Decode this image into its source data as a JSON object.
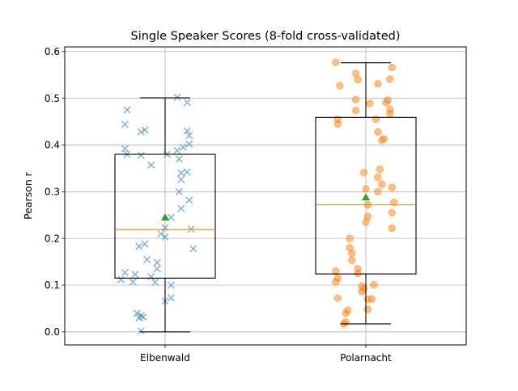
{
  "chart_data": {
    "type": "box",
    "title": "Single Speaker Scores (8-fold cross-validated)",
    "xlabel": "",
    "ylabel": "Pearson r",
    "ylim": [
      -0.028,
      0.61
    ],
    "yticks": [
      0.0,
      0.1,
      0.2,
      0.3,
      0.4,
      0.5,
      0.6
    ],
    "ytick_labels": [
      "0.0",
      "0.1",
      "0.2",
      "0.3",
      "0.4",
      "0.5",
      "0.6"
    ],
    "grid": true,
    "categories": [
      "Elbenwald",
      "Polarnacht"
    ],
    "series": [
      {
        "name": "Elbenwald",
        "color": "#1f77b4",
        "marker": "x",
        "box": {
          "whisker_low": 0.0,
          "q1": 0.115,
          "median": 0.219,
          "q3": 0.38,
          "whisker_high": 0.501,
          "mean": 0.245
        },
        "points": [
          {
            "x": -0.19,
            "y": 0.475
          },
          {
            "x": -0.2,
            "y": 0.444
          },
          {
            "x": -0.1,
            "y": 0.432
          },
          {
            "x": -0.12,
            "y": 0.428
          },
          {
            "x": 0.06,
            "y": 0.502
          },
          {
            "x": 0.11,
            "y": 0.491
          },
          {
            "x": 0.11,
            "y": 0.43
          },
          {
            "x": 0.12,
            "y": 0.42
          },
          {
            "x": 0.12,
            "y": 0.402
          },
          {
            "x": 0.09,
            "y": 0.395
          },
          {
            "x": -0.2,
            "y": 0.392
          },
          {
            "x": 0.06,
            "y": 0.388
          },
          {
            "x": -0.19,
            "y": 0.38
          },
          {
            "x": -0.12,
            "y": 0.378
          },
          {
            "x": 0.01,
            "y": 0.38
          },
          {
            "x": 0.07,
            "y": 0.37
          },
          {
            "x": -0.07,
            "y": 0.357
          },
          {
            "x": 0.11,
            "y": 0.342
          },
          {
            "x": 0.08,
            "y": 0.34
          },
          {
            "x": 0.08,
            "y": 0.326
          },
          {
            "x": 0.07,
            "y": 0.3
          },
          {
            "x": 0.12,
            "y": 0.282
          },
          {
            "x": 0.08,
            "y": 0.264
          },
          {
            "x": 0.03,
            "y": 0.245
          },
          {
            "x": 0.0,
            "y": 0.223
          },
          {
            "x": 0.13,
            "y": 0.22
          },
          {
            "x": -0.02,
            "y": 0.21
          },
          {
            "x": 0.0,
            "y": 0.203
          },
          {
            "x": -0.1,
            "y": 0.188
          },
          {
            "x": -0.13,
            "y": 0.183
          },
          {
            "x": 0.14,
            "y": 0.178
          },
          {
            "x": -0.09,
            "y": 0.155
          },
          {
            "x": -0.04,
            "y": 0.148
          },
          {
            "x": -0.04,
            "y": 0.135
          },
          {
            "x": -0.2,
            "y": 0.127
          },
          {
            "x": -0.15,
            "y": 0.123
          },
          {
            "x": -0.07,
            "y": 0.118
          },
          {
            "x": -0.22,
            "y": 0.112
          },
          {
            "x": -0.16,
            "y": 0.107
          },
          {
            "x": -0.05,
            "y": 0.106
          },
          {
            "x": 0.03,
            "y": 0.1
          },
          {
            "x": 0.03,
            "y": 0.073
          },
          {
            "x": 0.0,
            "y": 0.066
          },
          {
            "x": -0.14,
            "y": 0.04
          },
          {
            "x": -0.12,
            "y": 0.035
          },
          {
            "x": -0.11,
            "y": 0.032
          },
          {
            "x": -0.13,
            "y": 0.03
          },
          {
            "x": -0.12,
            "y": 0.002
          }
        ]
      },
      {
        "name": "Polarnacht",
        "color": "#ff7f0e",
        "marker": "o",
        "box": {
          "whisker_low": 0.017,
          "q1": 0.124,
          "median": 0.272,
          "q3": 0.459,
          "whisker_high": 0.576,
          "mean": 0.288
        },
        "points": [
          {
            "x": -0.15,
            "y": 0.577
          },
          {
            "x": 0.13,
            "y": 0.566
          },
          {
            "x": -0.05,
            "y": 0.553
          },
          {
            "x": -0.04,
            "y": 0.54
          },
          {
            "x": 0.12,
            "y": 0.541
          },
          {
            "x": 0.06,
            "y": 0.531
          },
          {
            "x": -0.13,
            "y": 0.527
          },
          {
            "x": -0.05,
            "y": 0.497
          },
          {
            "x": 0.11,
            "y": 0.496
          },
          {
            "x": 0.1,
            "y": 0.491
          },
          {
            "x": 0.02,
            "y": 0.489
          },
          {
            "x": 0.12,
            "y": 0.476
          },
          {
            "x": -0.05,
            "y": 0.474
          },
          {
            "x": 0.12,
            "y": 0.467
          },
          {
            "x": 0.05,
            "y": 0.455
          },
          {
            "x": -0.14,
            "y": 0.455
          },
          {
            "x": -0.14,
            "y": 0.445
          },
          {
            "x": 0.06,
            "y": 0.428
          },
          {
            "x": 0.09,
            "y": 0.413
          },
          {
            "x": 0.08,
            "y": 0.41
          },
          {
            "x": 0.07,
            "y": 0.348
          },
          {
            "x": -0.01,
            "y": 0.341
          },
          {
            "x": 0.06,
            "y": 0.331
          },
          {
            "x": 0.08,
            "y": 0.316
          },
          {
            "x": 0.13,
            "y": 0.309
          },
          {
            "x": 0.0,
            "y": 0.306
          },
          {
            "x": 0.06,
            "y": 0.3
          },
          {
            "x": 0.14,
            "y": 0.277
          },
          {
            "x": 0.01,
            "y": 0.272
          },
          {
            "x": 0.13,
            "y": 0.255
          },
          {
            "x": 0.01,
            "y": 0.247
          },
          {
            "x": 0.0,
            "y": 0.235
          },
          {
            "x": 0.13,
            "y": 0.222
          },
          {
            "x": -0.08,
            "y": 0.2
          },
          {
            "x": -0.08,
            "y": 0.18
          },
          {
            "x": -0.07,
            "y": 0.168
          },
          {
            "x": -0.07,
            "y": 0.153
          },
          {
            "x": -0.04,
            "y": 0.135
          },
          {
            "x": -0.15,
            "y": 0.13
          },
          {
            "x": -0.04,
            "y": 0.125
          },
          {
            "x": -0.14,
            "y": 0.115
          },
          {
            "x": -0.15,
            "y": 0.107
          },
          {
            "x": 0.04,
            "y": 0.101
          },
          {
            "x": -0.02,
            "y": 0.098
          },
          {
            "x": -0.01,
            "y": 0.092
          },
          {
            "x": -0.02,
            "y": 0.086
          },
          {
            "x": 0.01,
            "y": 0.07
          },
          {
            "x": 0.03,
            "y": 0.07
          },
          {
            "x": -0.14,
            "y": 0.072
          },
          {
            "x": 0.01,
            "y": 0.048
          },
          {
            "x": -0.09,
            "y": 0.046
          },
          {
            "x": -0.1,
            "y": 0.04
          },
          {
            "x": -0.1,
            "y": 0.021
          },
          {
            "x": -0.11,
            "y": 0.017
          }
        ]
      }
    ],
    "colors": {
      "median": "#ff7f0e",
      "mean_marker": "#2ca02c",
      "grid": "#b0b0b0",
      "box": "#000000"
    }
  }
}
